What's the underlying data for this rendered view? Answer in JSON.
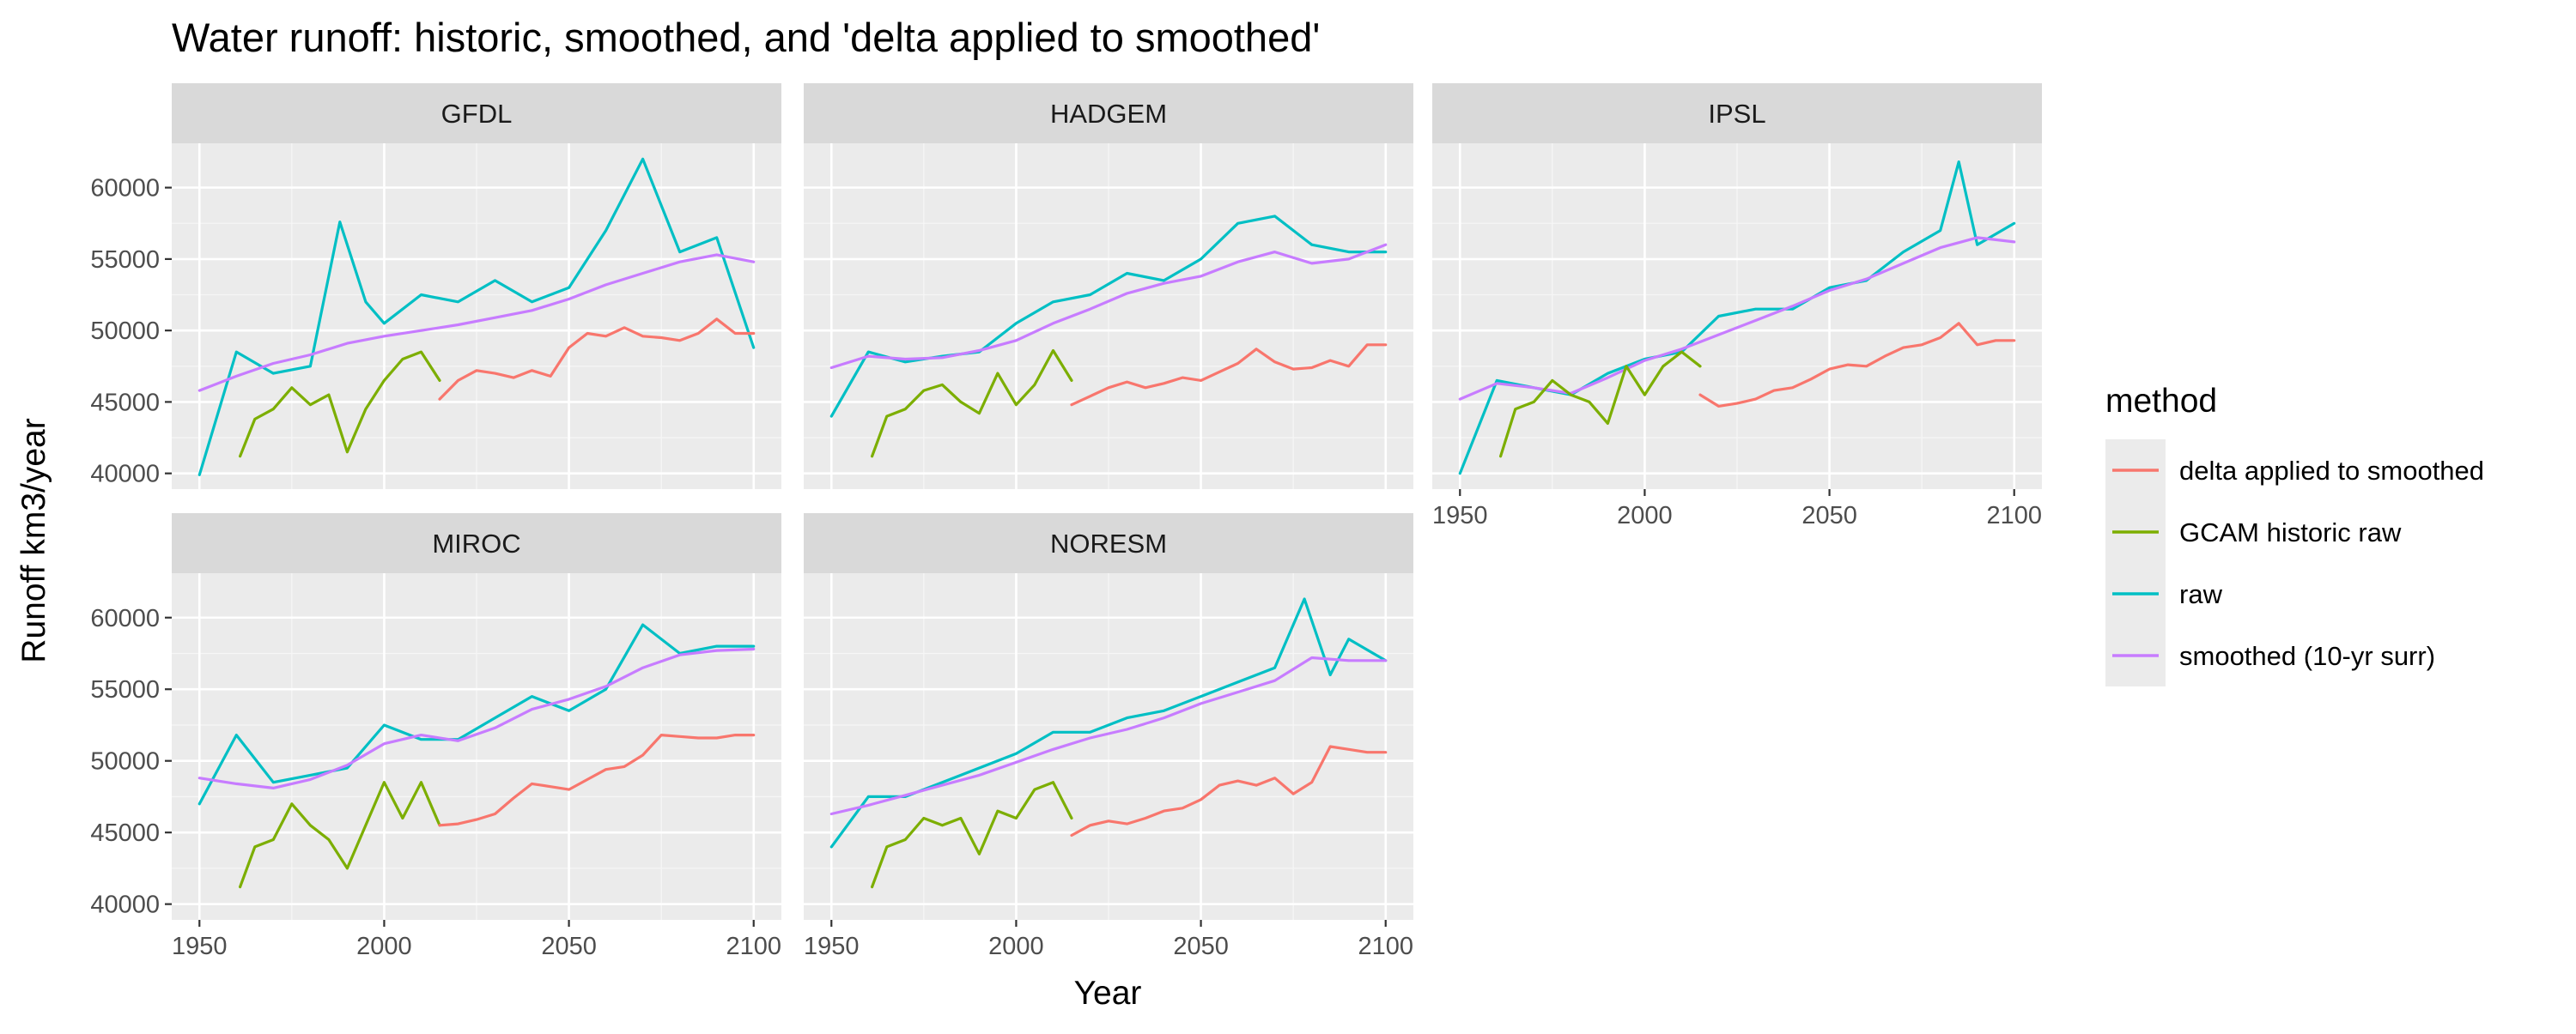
{
  "chart_data": {
    "type": "line",
    "title": "Water runoff: historic, smoothed, and 'delta applied to smoothed'",
    "xlabel": "Year",
    "ylabel": "Runoff km3/year",
    "xlim": [
      1950,
      2100
    ],
    "ylim": [
      40000,
      62000
    ],
    "x_ticks": [
      "1950",
      "2000",
      "2050",
      "2100"
    ],
    "y_ticks": [
      "40000",
      "45000",
      "50000",
      "55000",
      "60000"
    ],
    "grid": true,
    "legend": {
      "title": "method",
      "position": "right",
      "entries": [
        {
          "label": "delta applied to smoothed",
          "color": "#F8766D"
        },
        {
          "label": "GCAM historic raw",
          "color": "#7CAE00"
        },
        {
          "label": "raw",
          "color": "#00BFC4"
        },
        {
          "label": "smoothed (10-yr surr)",
          "color": "#C77CFF"
        }
      ]
    },
    "facets": [
      {
        "name": "GFDL",
        "series": [
          {
            "name": "raw",
            "color": "#00BFC4",
            "x": [
              1950,
              1960,
              1970,
              1980,
              1988,
              1995,
              2000,
              2010,
              2020,
              2030,
              2040,
              2050,
              2060,
              2070,
              2080,
              2090,
              2100
            ],
            "y": [
              39900,
              48500,
              47000,
              47500,
              57600,
              52000,
              50500,
              52500,
              52000,
              53500,
              52000,
              53000,
              57000,
              62000,
              55500,
              56500,
              48800
            ]
          },
          {
            "name": "smoothed (10-yr surr)",
            "color": "#C77CFF",
            "x": [
              1950,
              1960,
              1970,
              1980,
              1990,
              2000,
              2010,
              2020,
              2030,
              2040,
              2050,
              2060,
              2070,
              2080,
              2090,
              2100
            ],
            "y": [
              45800,
              46800,
              47700,
              48300,
              49100,
              49600,
              50000,
              50400,
              50900,
              51400,
              52200,
              53200,
              54000,
              54800,
              55300,
              54800
            ]
          },
          {
            "name": "GCAM historic raw",
            "color": "#7CAE00",
            "x": [
              1961,
              1965,
              1970,
              1975,
              1980,
              1985,
              1990,
              1995,
              2000,
              2005,
              2010,
              2015
            ],
            "y": [
              41200,
              43800,
              44500,
              46000,
              44800,
              45500,
              41500,
              44500,
              46500,
              48000,
              48500,
              46500
            ]
          },
          {
            "name": "delta applied to smoothed",
            "color": "#F8766D",
            "x": [
              2015,
              2020,
              2025,
              2030,
              2035,
              2040,
              2045,
              2050,
              2055,
              2060,
              2065,
              2070,
              2075,
              2080,
              2085,
              2090,
              2095,
              2100
            ],
            "y": [
              45200,
              46500,
              47200,
              47000,
              46700,
              47200,
              46800,
              48800,
              49800,
              49600,
              50200,
              49600,
              49500,
              49300,
              49800,
              50800,
              49800,
              49800
            ]
          }
        ]
      },
      {
        "name": "HADGEM",
        "series": [
          {
            "name": "raw",
            "color": "#00BFC4",
            "x": [
              1950,
              1960,
              1970,
              1980,
              1990,
              2000,
              2010,
              2020,
              2030,
              2040,
              2050,
              2060,
              2070,
              2080,
              2090,
              2100
            ],
            "y": [
              44000,
              48500,
              47800,
              48200,
              48500,
              50500,
              52000,
              52500,
              54000,
              53500,
              55000,
              57500,
              58000,
              56000,
              55500,
              55500
            ]
          },
          {
            "name": "smoothed (10-yr surr)",
            "color": "#C77CFF",
            "x": [
              1950,
              1960,
              1970,
              1980,
              1990,
              2000,
              2010,
              2020,
              2030,
              2040,
              2050,
              2060,
              2070,
              2080,
              2090,
              2100
            ],
            "y": [
              47400,
              48200,
              48000,
              48100,
              48600,
              49300,
              50500,
              51500,
              52600,
              53300,
              53800,
              54800,
              55500,
              54700,
              55000,
              56000
            ]
          },
          {
            "name": "GCAM historic raw",
            "color": "#7CAE00",
            "x": [
              1961,
              1965,
              1970,
              1975,
              1980,
              1985,
              1990,
              1995,
              2000,
              2005,
              2010,
              2015
            ],
            "y": [
              41200,
              44000,
              44500,
              45800,
              46200,
              45000,
              44200,
              47000,
              44800,
              46200,
              48600,
              46500
            ]
          },
          {
            "name": "delta applied to smoothed",
            "color": "#F8766D",
            "x": [
              2015,
              2020,
              2025,
              2030,
              2035,
              2040,
              2045,
              2050,
              2055,
              2060,
              2065,
              2070,
              2075,
              2080,
              2085,
              2090,
              2095,
              2100
            ],
            "y": [
              44800,
              45400,
              46000,
              46400,
              46000,
              46300,
              46700,
              46500,
              47100,
              47700,
              48700,
              47800,
              47300,
              47400,
              47900,
              47500,
              49000,
              49000
            ]
          }
        ]
      },
      {
        "name": "IPSL",
        "series": [
          {
            "name": "raw",
            "color": "#00BFC4",
            "x": [
              1950,
              1960,
              1970,
              1980,
              1990,
              2000,
              2010,
              2020,
              2030,
              2040,
              2050,
              2060,
              2070,
              2080,
              2085,
              2090,
              2100
            ],
            "y": [
              40000,
              46500,
              46000,
              45500,
              47000,
              48000,
              48500,
              51000,
              51500,
              51500,
              53000,
              53500,
              55500,
              57000,
              61800,
              56000,
              57500
            ]
          },
          {
            "name": "smoothed (10-yr surr)",
            "color": "#C77CFF",
            "x": [
              1950,
              1960,
              1970,
              1980,
              1990,
              2000,
              2010,
              2020,
              2030,
              2040,
              2050,
              2060,
              2070,
              2080,
              2090,
              2100
            ],
            "y": [
              45200,
              46300,
              46000,
              45600,
              46700,
              47900,
              48700,
              49700,
              50700,
              51700,
              52800,
              53600,
              54700,
              55800,
              56500,
              56200
            ]
          },
          {
            "name": "GCAM historic raw",
            "color": "#7CAE00",
            "x": [
              1961,
              1965,
              1970,
              1975,
              1980,
              1985,
              1990,
              1995,
              2000,
              2005,
              2010,
              2015
            ],
            "y": [
              41200,
              44500,
              45000,
              46500,
              45500,
              45000,
              43500,
              47500,
              45500,
              47500,
              48500,
              47500
            ]
          },
          {
            "name": "delta applied to smoothed",
            "color": "#F8766D",
            "x": [
              2015,
              2020,
              2025,
              2030,
              2035,
              2040,
              2045,
              2050,
              2055,
              2060,
              2065,
              2070,
              2075,
              2080,
              2085,
              2090,
              2095,
              2100
            ],
            "y": [
              45500,
              44700,
              44900,
              45200,
              45800,
              46000,
              46600,
              47300,
              47600,
              47500,
              48200,
              48800,
              49000,
              49500,
              50500,
              49000,
              49300,
              49300
            ]
          }
        ]
      },
      {
        "name": "MIROC",
        "series": [
          {
            "name": "raw",
            "color": "#00BFC4",
            "x": [
              1950,
              1960,
              1970,
              1980,
              1990,
              2000,
              2010,
              2020,
              2030,
              2040,
              2050,
              2060,
              2070,
              2080,
              2090,
              2100
            ],
            "y": [
              47000,
              51800,
              48500,
              49000,
              49500,
              52500,
              51500,
              51500,
              53000,
              54500,
              53500,
              55000,
              59500,
              57500,
              58000,
              58000
            ]
          },
          {
            "name": "smoothed (10-yr surr)",
            "color": "#C77CFF",
            "x": [
              1950,
              1960,
              1970,
              1980,
              1990,
              2000,
              2010,
              2020,
              2030,
              2040,
              2050,
              2060,
              2070,
              2080,
              2090,
              2100
            ],
            "y": [
              48800,
              48400,
              48100,
              48700,
              49700,
              51200,
              51800,
              51400,
              52300,
              53600,
              54300,
              55200,
              56500,
              57400,
              57700,
              57800
            ]
          },
          {
            "name": "GCAM historic raw",
            "color": "#7CAE00",
            "x": [
              1961,
              1965,
              1970,
              1975,
              1980,
              1985,
              1990,
              1995,
              2000,
              2005,
              2010,
              2015
            ],
            "y": [
              41200,
              44000,
              44500,
              47000,
              45500,
              44500,
              42500,
              45500,
              48500,
              46000,
              48500,
              45500
            ]
          },
          {
            "name": "delta applied to smoothed",
            "color": "#F8766D",
            "x": [
              2015,
              2020,
              2025,
              2030,
              2035,
              2040,
              2045,
              2050,
              2055,
              2060,
              2065,
              2070,
              2075,
              2080,
              2085,
              2090,
              2095,
              2100
            ],
            "y": [
              45500,
              45600,
              45900,
              46300,
              47400,
              48400,
              48200,
              48000,
              48700,
              49400,
              49600,
              50400,
              51800,
              51700,
              51600,
              51600,
              51800,
              51800
            ]
          }
        ]
      },
      {
        "name": "NORESM",
        "series": [
          {
            "name": "raw",
            "color": "#00BFC4",
            "x": [
              1950,
              1960,
              1970,
              1980,
              1990,
              2000,
              2010,
              2020,
              2030,
              2040,
              2050,
              2060,
              2070,
              2078,
              2085,
              2090,
              2100
            ],
            "y": [
              44000,
              47500,
              47500,
              48500,
              49500,
              50500,
              52000,
              52000,
              53000,
              53500,
              54500,
              55500,
              56500,
              61300,
              56000,
              58500,
              57000
            ]
          },
          {
            "name": "smoothed (10-yr surr)",
            "color": "#C77CFF",
            "x": [
              1950,
              1960,
              1970,
              1980,
              1990,
              2000,
              2010,
              2020,
              2030,
              2040,
              2050,
              2060,
              2070,
              2080,
              2090,
              2100
            ],
            "y": [
              46300,
              46900,
              47600,
              48300,
              49000,
              49900,
              50800,
              51600,
              52200,
              53000,
              54000,
              54800,
              55600,
              57200,
              57000,
              57000
            ]
          },
          {
            "name": "GCAM historic raw",
            "color": "#7CAE00",
            "x": [
              1961,
              1965,
              1970,
              1975,
              1980,
              1985,
              1990,
              1995,
              2000,
              2005,
              2010,
              2015
            ],
            "y": [
              41200,
              44000,
              44500,
              46000,
              45500,
              46000,
              43500,
              46500,
              46000,
              48000,
              48500,
              46000
            ]
          },
          {
            "name": "delta applied to smoothed",
            "color": "#F8766D",
            "x": [
              2015,
              2020,
              2025,
              2030,
              2035,
              2040,
              2045,
              2050,
              2055,
              2060,
              2065,
              2070,
              2075,
              2080,
              2085,
              2090,
              2095,
              2100
            ],
            "y": [
              44800,
              45500,
              45800,
              45600,
              46000,
              46500,
              46700,
              47300,
              48300,
              48600,
              48300,
              48800,
              47700,
              48500,
              51000,
              50800,
              50600,
              50600
            ]
          }
        ]
      }
    ]
  }
}
